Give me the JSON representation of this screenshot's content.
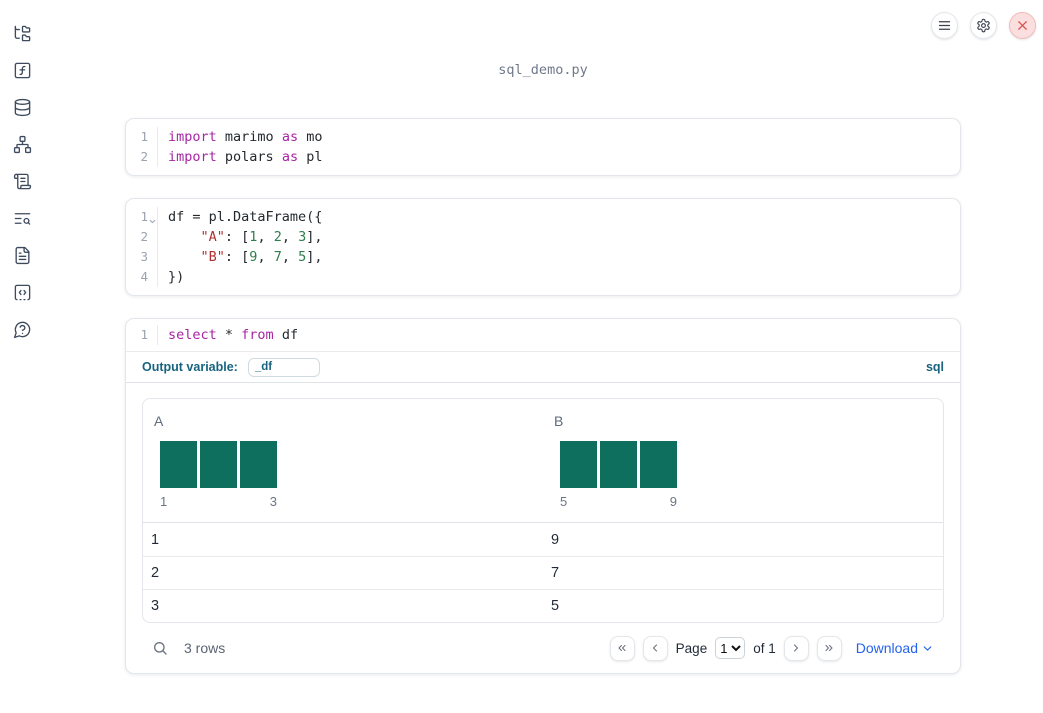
{
  "app": {
    "filename": "sql_demo.py"
  },
  "topbar": {
    "buttons": [
      "notebook-menu",
      "settings",
      "shutdown"
    ]
  },
  "sidebar": {
    "items": [
      "file-explorer",
      "functions",
      "data-sources",
      "dependency-graph",
      "scratchpad-scroll",
      "logs-search",
      "documentation",
      "snippets",
      "help"
    ]
  },
  "colors": {
    "keyword": "#a626a4",
    "string": "#b03030",
    "number": "#2e7d4f",
    "code": "#24292e",
    "accent": "#17637f",
    "bar": "#0e6f5e",
    "link": "#2563eb"
  },
  "cells": [
    {
      "type": "python",
      "lines": [
        {
          "num": "1",
          "tokens": [
            [
              "kw",
              "import"
            ],
            [
              "plain",
              " marimo "
            ],
            [
              "kw",
              "as"
            ],
            [
              "plain",
              " mo"
            ]
          ]
        },
        {
          "num": "2",
          "tokens": [
            [
              "kw",
              "import"
            ],
            [
              "plain",
              " polars "
            ],
            [
              "kw",
              "as"
            ],
            [
              "plain",
              " pl"
            ]
          ]
        }
      ]
    },
    {
      "type": "python",
      "lines": [
        {
          "num": "1",
          "fold": true,
          "tokens": [
            [
              "plain",
              "df = pl.DataFrame({"
            ]
          ]
        },
        {
          "num": "2",
          "tokens": [
            [
              "plain",
              "    "
            ],
            [
              "str",
              "\"A\""
            ],
            [
              "plain",
              ": ["
            ],
            [
              "num",
              "1"
            ],
            [
              "plain",
              ", "
            ],
            [
              "num",
              "2"
            ],
            [
              "plain",
              ", "
            ],
            [
              "num",
              "3"
            ],
            [
              "plain",
              "],"
            ]
          ]
        },
        {
          "num": "3",
          "tokens": [
            [
              "plain",
              "    "
            ],
            [
              "str",
              "\"B\""
            ],
            [
              "plain",
              ": ["
            ],
            [
              "num",
              "9"
            ],
            [
              "plain",
              ", "
            ],
            [
              "num",
              "7"
            ],
            [
              "plain",
              ", "
            ],
            [
              "num",
              "5"
            ],
            [
              "plain",
              "],"
            ]
          ]
        },
        {
          "num": "4",
          "tokens": [
            [
              "plain",
              "})"
            ]
          ]
        }
      ]
    },
    {
      "type": "sql",
      "lines": [
        {
          "num": "1",
          "tokens": [
            [
              "kw",
              "select"
            ],
            [
              "plain",
              " * "
            ],
            [
              "kw",
              "from"
            ],
            [
              "plain",
              " df"
            ]
          ]
        }
      ],
      "output_variable_label": "Output variable:",
      "output_variable_value": "_df",
      "language_badge": "sql"
    }
  ],
  "table": {
    "columns": [
      {
        "name": "A",
        "histogram": {
          "type": "bar",
          "bar_counts": [
            1,
            1,
            1
          ],
          "min_label": "1",
          "max_label": "3"
        }
      },
      {
        "name": "B",
        "histogram": {
          "type": "bar",
          "bar_counts": [
            1,
            1,
            1
          ],
          "min_label": "5",
          "max_label": "9"
        }
      }
    ],
    "rows": [
      [
        "1",
        "9"
      ],
      [
        "2",
        "7"
      ],
      [
        "3",
        "5"
      ]
    ],
    "footer": {
      "row_count": "3 rows",
      "page_label": "Page",
      "page_value": "1",
      "of_label": "of 1",
      "download_label": "Download"
    }
  }
}
